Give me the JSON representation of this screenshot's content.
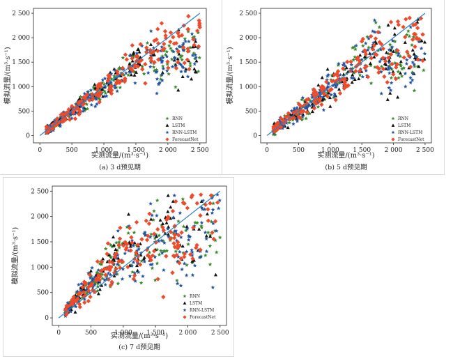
{
  "chart_data": [
    {
      "id": "a",
      "type": "scatter",
      "caption": "(a) 3 d预见期",
      "xlabel": "实测流量/(m³·s⁻¹)",
      "ylabel": "模拟流量/(m³·s⁻¹)",
      "xlim": [
        -100,
        2600
      ],
      "ylim": [
        -150,
        2600
      ],
      "x_ticks": [
        0,
        500,
        1000,
        1500,
        2000,
        2500
      ],
      "x_tick_labels": [
        "0",
        "500",
        "1 000",
        "1 500",
        "2 000",
        "2 500"
      ],
      "y_ticks": [
        0,
        500,
        1000,
        1500,
        2000,
        2500
      ],
      "y_tick_labels": [
        "0",
        "500",
        "1 000",
        "1 500",
        "2 000",
        "2 500"
      ],
      "reference_line": {
        "from": [
          0,
          0
        ],
        "to": [
          2500,
          2500
        ],
        "color": "#2a7fc2"
      },
      "legend": {
        "placement": "bottom-right"
      },
      "series": [
        {
          "name": "RNN",
          "marker": "star",
          "color": "#3a8a2e"
        },
        {
          "name": "LSTM",
          "marker": "triangle",
          "color": "#111111"
        },
        {
          "name": "RNN-LSTM",
          "marker": "star",
          "color": "#2355a5"
        },
        {
          "name": "ForecastNet",
          "marker": "diamond",
          "color": "#ef4a2a"
        }
      ]
    },
    {
      "id": "b",
      "type": "scatter",
      "caption": "(b) 5 d预见期",
      "xlabel": "实测流量/(m³·s⁻¹)",
      "ylabel": "模拟流量/(m³·s⁻¹)",
      "xlim": [
        -100,
        2600
      ],
      "ylim": [
        -150,
        2600
      ],
      "x_ticks": [
        0,
        500,
        1000,
        1500,
        2000,
        2500
      ],
      "x_tick_labels": [
        "0",
        "500",
        "1 000",
        "1 500",
        "2 000",
        "2 500"
      ],
      "y_ticks": [
        0,
        500,
        1000,
        1500,
        2000,
        2500
      ],
      "y_tick_labels": [
        "0",
        "500",
        "1 000",
        "1 500",
        "2 000",
        "2 500"
      ],
      "reference_line": {
        "from": [
          0,
          0
        ],
        "to": [
          2500,
          2500
        ],
        "color": "#2a7fc2"
      },
      "legend": {
        "placement": "bottom-right"
      },
      "series": [
        {
          "name": "RNN",
          "marker": "star",
          "color": "#3a8a2e"
        },
        {
          "name": "LSTM",
          "marker": "triangle",
          "color": "#111111"
        },
        {
          "name": "RNN-LSTM",
          "marker": "star",
          "color": "#2355a5"
        },
        {
          "name": "ForecastNet",
          "marker": "diamond",
          "color": "#ef4a2a"
        }
      ]
    },
    {
      "id": "c",
      "type": "scatter",
      "caption": "(c) 7 d预见期",
      "xlabel": "实测流量/(m³·s⁻¹)",
      "ylabel": "模拟流量/(m³·s⁻¹)",
      "xlim": [
        -100,
        2600
      ],
      "ylim": [
        -150,
        2600
      ],
      "x_ticks": [
        0,
        500,
        1000,
        1500,
        2000,
        2500
      ],
      "x_tick_labels": [
        "0",
        "500",
        "1 000",
        "1 500",
        "2 000",
        "2 500"
      ],
      "y_ticks": [
        0,
        500,
        1000,
        1500,
        2000,
        2500
      ],
      "y_tick_labels": [
        "0",
        "500",
        "1 000",
        "1 500",
        "2 000",
        "2 500"
      ],
      "reference_line": {
        "from": [
          0,
          0
        ],
        "to": [
          2500,
          2500
        ],
        "color": "#2a7fc2"
      },
      "legend": {
        "placement": "bottom-right"
      },
      "series": [
        {
          "name": "RNN",
          "marker": "star",
          "color": "#3a8a2e"
        },
        {
          "name": "LSTM",
          "marker": "triangle",
          "color": "#111111"
        },
        {
          "name": "RNN-LSTM",
          "marker": "star",
          "color": "#2355a5"
        },
        {
          "name": "ForecastNet",
          "marker": "diamond",
          "color": "#ef4a2a"
        }
      ]
    }
  ]
}
